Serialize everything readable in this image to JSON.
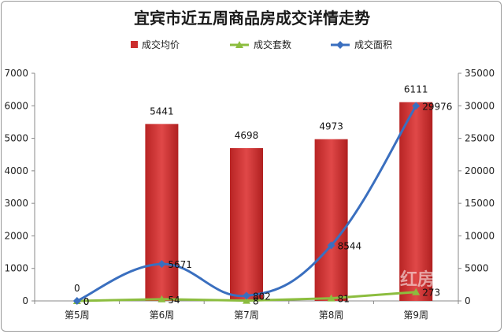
{
  "chart_data": {
    "type": "bar",
    "title": "宜宾市近五周商品房成交详情走势",
    "categories": [
      "第5周",
      "第6周",
      "第7周",
      "第8周",
      "第9周"
    ],
    "series": [
      {
        "name": "成交均价",
        "type": "bar",
        "axis": "left",
        "color": "#cc2e2e",
        "values": [
          0,
          5441,
          4698,
          4973,
          6111
        ]
      },
      {
        "name": "成交套数",
        "type": "line",
        "axis": "left",
        "color": "#8cbd3f",
        "marker": "triangle",
        "values": [
          0,
          54,
          8,
          81,
          273
        ]
      },
      {
        "name": "成交面积",
        "type": "line",
        "axis": "right",
        "color": "#3a6fbf",
        "marker": "diamond",
        "smooth": true,
        "values": [
          0,
          5671,
          802,
          8544,
          29976
        ]
      }
    ],
    "y_left": {
      "min": 0,
      "max": 7000,
      "step": 1000
    },
    "y_right": {
      "min": 0,
      "max": 35000,
      "step": 5000
    },
    "grid": false,
    "legend_position": "top",
    "watermark": "红房"
  }
}
